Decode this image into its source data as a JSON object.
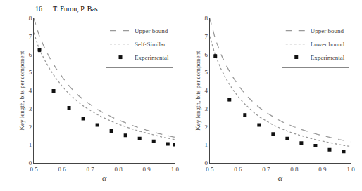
{
  "chart_data": [
    {
      "type": "line",
      "annotations": [
        "16      T. Furon, P. Bas"
      ],
      "xlabel": "α",
      "ylabel": "Key length, bits per component",
      "xlim": [
        0.5,
        1.0
      ],
      "xticks": [
        {
          "value": 0.5,
          "label": "0.5"
        },
        0.6,
        0.7,
        0.8,
        0.9,
        {
          "value": 1.0,
          "label": "1.0"
        }
      ],
      "ylim": [
        0,
        8
      ],
      "yticks": [
        0,
        1,
        2,
        3,
        4,
        5,
        6,
        7,
        8
      ],
      "grid": false,
      "legend": "upper right",
      "series": [
        {
          "name": "Upper bound",
          "type": "line",
          "line_style": "dash",
          "color": "#999999",
          "x": [
            0.5,
            0.51,
            0.52,
            0.54,
            0.56,
            0.58,
            0.6,
            0.62,
            0.64,
            0.66,
            0.68,
            0.7,
            0.72,
            0.74,
            0.76,
            0.78,
            0.8,
            0.82,
            0.84,
            0.86,
            0.88,
            0.9,
            0.92,
            0.94,
            0.96,
            0.98,
            1.0
          ],
          "values": [
            8.0,
            7.5,
            7.0,
            6.3,
            5.7,
            5.2,
            4.75,
            4.35,
            4.0,
            3.7,
            3.45,
            3.22,
            3.01,
            2.83,
            2.66,
            2.51,
            2.37,
            2.24,
            2.12,
            2.01,
            1.91,
            1.81,
            1.72,
            1.64,
            1.56,
            1.49,
            1.42
          ]
        },
        {
          "name": "Self-Similar",
          "type": "line",
          "line_style": "dot",
          "color": "#999999",
          "x": [
            0.5,
            0.51,
            0.52,
            0.54,
            0.56,
            0.58,
            0.6,
            0.62,
            0.64,
            0.66,
            0.68,
            0.7,
            0.72,
            0.74,
            0.76,
            0.78,
            0.8,
            0.82,
            0.84,
            0.86,
            0.88,
            0.9,
            0.92,
            0.94,
            0.96,
            0.98,
            1.0
          ],
          "values": [
            7.2,
            6.7,
            6.25,
            5.65,
            5.1,
            4.65,
            4.25,
            3.9,
            3.6,
            3.33,
            3.1,
            2.9,
            2.72,
            2.55,
            2.4,
            2.27,
            2.14,
            2.03,
            1.92,
            1.82,
            1.73,
            1.64,
            1.56,
            1.49,
            1.41,
            1.35,
            1.29
          ]
        },
        {
          "name": "Experimental",
          "type": "scatter",
          "marker": "square",
          "color": "#111111",
          "x": [
            0.52,
            0.57,
            0.625,
            0.675,
            0.725,
            0.775,
            0.825,
            0.875,
            0.925,
            0.975,
            1.0
          ],
          "values": [
            6.25,
            3.98,
            3.05,
            2.45,
            2.1,
            1.77,
            1.52,
            1.35,
            1.19,
            1.05,
            1.01
          ],
          "error": [
            0.1,
            0.07,
            0.06,
            0.055,
            0.045,
            0.04,
            0.035,
            0.03,
            0.025,
            0.025,
            0.02
          ]
        }
      ]
    },
    {
      "type": "line",
      "xlabel": "α",
      "ylabel": "Key length, bits per component",
      "xlim": [
        0.5,
        1.0
      ],
      "xticks": [
        {
          "value": 0.5,
          "label": "0.5"
        },
        0.6,
        0.7,
        0.8,
        0.9,
        {
          "value": 1.0,
          "label": "1.0"
        }
      ],
      "ylim": [
        0,
        8
      ],
      "yticks": [
        0,
        1,
        2,
        3,
        4,
        5,
        6,
        7,
        8
      ],
      "grid": false,
      "legend": "upper right",
      "series": [
        {
          "name": "Upper bound",
          "type": "line",
          "line_style": "dash",
          "color": "#999999",
          "x": [
            0.5,
            0.51,
            0.52,
            0.54,
            0.56,
            0.58,
            0.6,
            0.62,
            0.64,
            0.66,
            0.68,
            0.7,
            0.72,
            0.74,
            0.76,
            0.78,
            0.8,
            0.82,
            0.84,
            0.86,
            0.88,
            0.9,
            0.92,
            0.94,
            0.96,
            0.98,
            1.0
          ],
          "values": [
            8.0,
            7.4,
            6.85,
            6.0,
            5.35,
            4.8,
            4.32,
            3.92,
            3.57,
            3.27,
            3.01,
            2.79,
            2.59,
            2.41,
            2.25,
            2.11,
            1.99,
            1.87,
            1.77,
            1.68,
            1.59,
            1.51,
            1.43,
            1.36,
            1.29,
            1.23,
            1.17
          ]
        },
        {
          "name": "Lower bound",
          "type": "line",
          "line_style": "dot",
          "color": "#999999",
          "x": [
            0.5,
            0.51,
            0.52,
            0.54,
            0.56,
            0.58,
            0.6,
            0.62,
            0.64,
            0.66,
            0.68,
            0.7,
            0.72,
            0.74,
            0.76,
            0.78,
            0.8,
            0.82,
            0.84,
            0.86,
            0.88,
            0.9,
            0.92,
            0.94,
            0.96,
            0.98,
            1.0
          ],
          "values": [
            7.0,
            6.45,
            5.95,
            5.2,
            4.6,
            4.1,
            3.68,
            3.32,
            3.01,
            2.74,
            2.51,
            2.31,
            2.14,
            1.99,
            1.85,
            1.73,
            1.62,
            1.52,
            1.43,
            1.35,
            1.27,
            1.2,
            1.13,
            1.07,
            1.01,
            0.96,
            0.9
          ]
        },
        {
          "name": "Experimental",
          "type": "scatter",
          "marker": "square",
          "color": "#111111",
          "x": [
            0.52,
            0.57,
            0.625,
            0.675,
            0.725,
            0.775,
            0.825,
            0.875,
            0.925,
            0.975
          ],
          "values": [
            5.9,
            3.5,
            2.65,
            2.1,
            1.6,
            1.35,
            1.1,
            0.95,
            0.73,
            0.63
          ],
          "error": [
            0.09,
            0.07,
            0.06,
            0.05,
            0.045,
            0.04,
            0.035,
            0.03,
            0.025,
            0.02
          ]
        }
      ]
    }
  ]
}
